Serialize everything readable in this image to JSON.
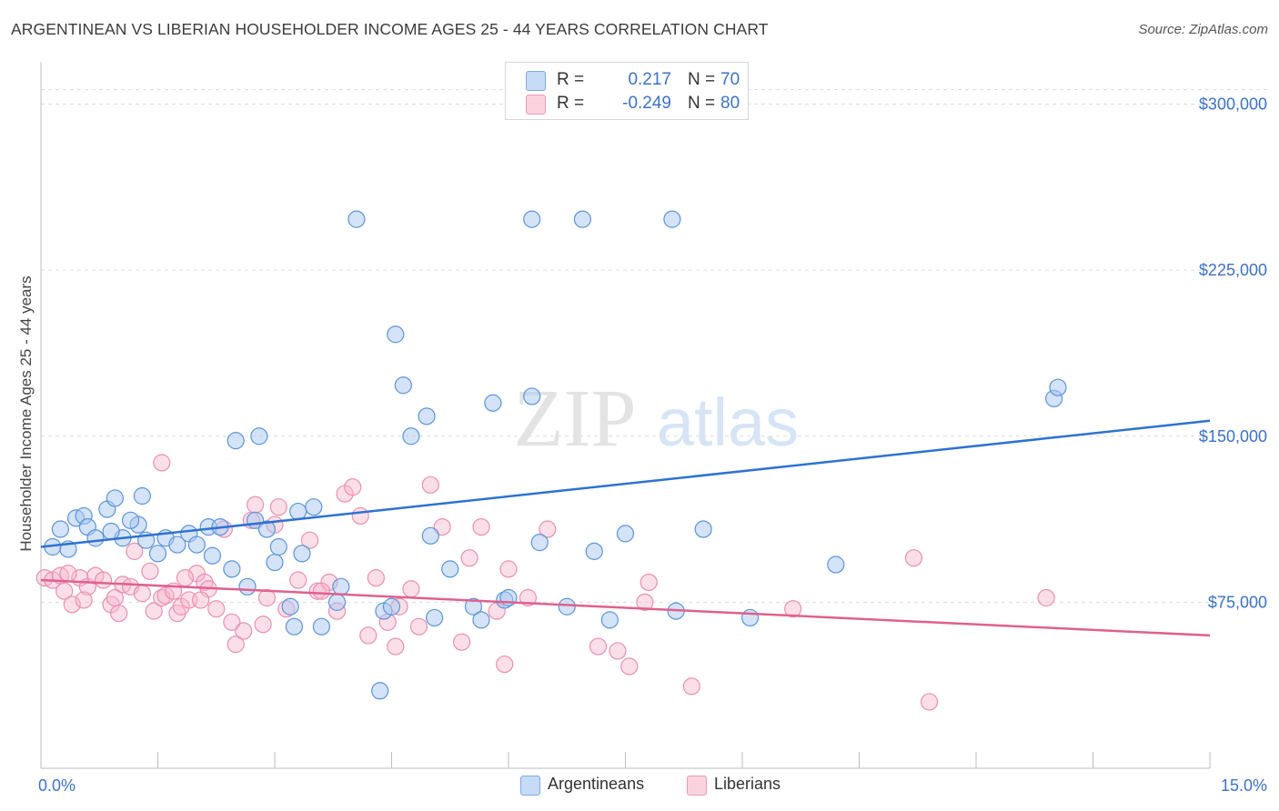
{
  "title": "ARGENTINEAN VS LIBERIAN HOUSEHOLDER INCOME AGES 25 - 44 YEARS CORRELATION CHART",
  "source": "Source: ZipAtlas.com",
  "watermark": {
    "zip": "ZIP",
    "atlas": "atlas"
  },
  "legend": {
    "rows": [
      {
        "r_label": "R =",
        "r_value": "0.217",
        "n_label": "N =",
        "n_value": "70",
        "color": "#a9c8f0"
      },
      {
        "r_label": "R =",
        "r_value": "-0.249",
        "n_label": "N =",
        "n_value": "80",
        "color": "#f6b8cb"
      }
    ]
  },
  "bottom_legend": [
    {
      "label": "Argentineans",
      "color": "#a9c8f0"
    },
    {
      "label": "Liberians",
      "color": "#f6b8cb"
    }
  ],
  "chart_data": {
    "type": "scatter",
    "xlabel": "",
    "ylabel": "Householder Income Ages 25 - 44 years",
    "xlim": [
      0,
      15
    ],
    "ylim": [
      0,
      315000
    ],
    "x_tick_labels": [
      {
        "value": 0,
        "label": "0.0%"
      },
      {
        "value": 15,
        "label": "15.0%"
      }
    ],
    "y_tick_labels": [
      {
        "value": 75000,
        "label": "$75,000"
      },
      {
        "value": 150000,
        "label": "$150,000"
      },
      {
        "value": 225000,
        "label": "$225,000"
      },
      {
        "value": 300000,
        "label": "$300,000"
      }
    ],
    "grid": true,
    "colors": {
      "argentineans": "#5b94dc",
      "liberians": "#e7769d",
      "blue_line": "#2d72d2",
      "pink_line": "#e0608e",
      "axis_text": "#3c72c8"
    },
    "series": [
      {
        "name": "Argentineans",
        "trend": {
          "x": [
            0,
            15
          ],
          "y": [
            100000,
            157000
          ]
        },
        "points": [
          [
            0.15,
            100000
          ],
          [
            0.25,
            108000
          ],
          [
            0.45,
            113000
          ],
          [
            0.55,
            114000
          ],
          [
            0.6,
            109000
          ],
          [
            0.7,
            104000
          ],
          [
            0.85,
            117000
          ],
          [
            0.95,
            122000
          ],
          [
            1.05,
            104000
          ],
          [
            1.25,
            110000
          ],
          [
            1.35,
            103000
          ],
          [
            1.5,
            97000
          ],
          [
            1.6,
            104000
          ],
          [
            1.75,
            101000
          ],
          [
            1.9,
            106000
          ],
          [
            2.0,
            101000
          ],
          [
            2.15,
            109000
          ],
          [
            2.2,
            96000
          ],
          [
            2.3,
            109000
          ],
          [
            2.45,
            90000
          ],
          [
            2.65,
            82000
          ],
          [
            2.75,
            112000
          ],
          [
            2.9,
            108000
          ],
          [
            3.0,
            93000
          ],
          [
            3.05,
            100000
          ],
          [
            3.2,
            73000
          ],
          [
            3.25,
            64000
          ],
          [
            3.35,
            97000
          ],
          [
            3.5,
            118000
          ],
          [
            3.6,
            64000
          ],
          [
            3.8,
            75000
          ],
          [
            3.85,
            82000
          ],
          [
            4.05,
            248000
          ],
          [
            4.35,
            35000
          ],
          [
            4.4,
            71000
          ],
          [
            4.55,
            196000
          ],
          [
            4.65,
            173000
          ],
          [
            4.75,
            150000
          ],
          [
            4.95,
            159000
          ],
          [
            5.0,
            105000
          ],
          [
            5.05,
            68000
          ],
          [
            5.25,
            90000
          ],
          [
            5.55,
            73000
          ],
          [
            5.65,
            67000
          ],
          [
            5.8,
            165000
          ],
          [
            5.95,
            76000
          ],
          [
            6.3,
            168000
          ],
          [
            6.3,
            248000
          ],
          [
            6.4,
            102000
          ],
          [
            6.75,
            73000
          ],
          [
            6.95,
            248000
          ],
          [
            7.1,
            98000
          ],
          [
            7.3,
            67000
          ],
          [
            7.5,
            106000
          ],
          [
            8.1,
            248000
          ],
          [
            8.15,
            71000
          ],
          [
            8.5,
            108000
          ],
          [
            9.1,
            68000
          ],
          [
            10.2,
            92000
          ],
          [
            13.0,
            167000
          ],
          [
            13.05,
            172000
          ],
          [
            0.35,
            99000
          ],
          [
            0.9,
            107000
          ],
          [
            1.15,
            112000
          ],
          [
            2.5,
            148000
          ],
          [
            2.8,
            150000
          ],
          [
            3.3,
            116000
          ],
          [
            4.5,
            73000
          ],
          [
            6.0,
            77000
          ],
          [
            1.3,
            123000
          ]
        ]
      },
      {
        "name": "Liberians",
        "trend": {
          "x": [
            0,
            15
          ],
          "y": [
            85000,
            60000
          ]
        },
        "points": [
          [
            0.05,
            86000
          ],
          [
            0.15,
            85000
          ],
          [
            0.25,
            87000
          ],
          [
            0.3,
            80000
          ],
          [
            0.4,
            74000
          ],
          [
            0.5,
            86000
          ],
          [
            0.6,
            82000
          ],
          [
            0.7,
            87000
          ],
          [
            0.8,
            85000
          ],
          [
            0.9,
            74000
          ],
          [
            0.95,
            77000
          ],
          [
            1.05,
            83000
          ],
          [
            1.15,
            82000
          ],
          [
            1.2,
            98000
          ],
          [
            1.3,
            79000
          ],
          [
            1.4,
            89000
          ],
          [
            1.45,
            71000
          ],
          [
            1.55,
            77000
          ],
          [
            1.6,
            78000
          ],
          [
            1.7,
            80000
          ],
          [
            1.75,
            70000
          ],
          [
            1.8,
            73000
          ],
          [
            1.9,
            76000
          ],
          [
            2.0,
            88000
          ],
          [
            2.1,
            84000
          ],
          [
            2.15,
            81000
          ],
          [
            2.25,
            72000
          ],
          [
            2.35,
            108000
          ],
          [
            2.45,
            66000
          ],
          [
            2.5,
            56000
          ],
          [
            2.6,
            62000
          ],
          [
            2.75,
            119000
          ],
          [
            2.85,
            65000
          ],
          [
            2.9,
            77000
          ],
          [
            3.05,
            118000
          ],
          [
            3.15,
            72000
          ],
          [
            3.3,
            85000
          ],
          [
            3.45,
            103000
          ],
          [
            3.55,
            80000
          ],
          [
            3.7,
            84000
          ],
          [
            3.8,
            71000
          ],
          [
            3.9,
            124000
          ],
          [
            4.0,
            127000
          ],
          [
            4.1,
            114000
          ],
          [
            4.2,
            60000
          ],
          [
            4.3,
            86000
          ],
          [
            4.45,
            66000
          ],
          [
            4.55,
            55000
          ],
          [
            4.6,
            73000
          ],
          [
            4.75,
            81000
          ],
          [
            4.85,
            64000
          ],
          [
            5.0,
            128000
          ],
          [
            5.15,
            109000
          ],
          [
            5.4,
            57000
          ],
          [
            5.5,
            95000
          ],
          [
            5.65,
            109000
          ],
          [
            5.85,
            71000
          ],
          [
            5.95,
            47000
          ],
          [
            6.0,
            90000
          ],
          [
            6.25,
            77000
          ],
          [
            6.5,
            108000
          ],
          [
            7.15,
            55000
          ],
          [
            7.4,
            53000
          ],
          [
            7.55,
            46000
          ],
          [
            7.75,
            75000
          ],
          [
            7.8,
            84000
          ],
          [
            8.35,
            37000
          ],
          [
            9.65,
            72000
          ],
          [
            11.2,
            95000
          ],
          [
            11.4,
            30000
          ],
          [
            12.9,
            77000
          ],
          [
            1.55,
            138000
          ],
          [
            2.7,
            112000
          ],
          [
            0.55,
            76000
          ],
          [
            1.0,
            70000
          ],
          [
            2.05,
            76000
          ],
          [
            3.6,
            80000
          ],
          [
            0.35,
            88000
          ],
          [
            1.85,
            86000
          ],
          [
            3.0,
            110000
          ]
        ]
      }
    ]
  }
}
